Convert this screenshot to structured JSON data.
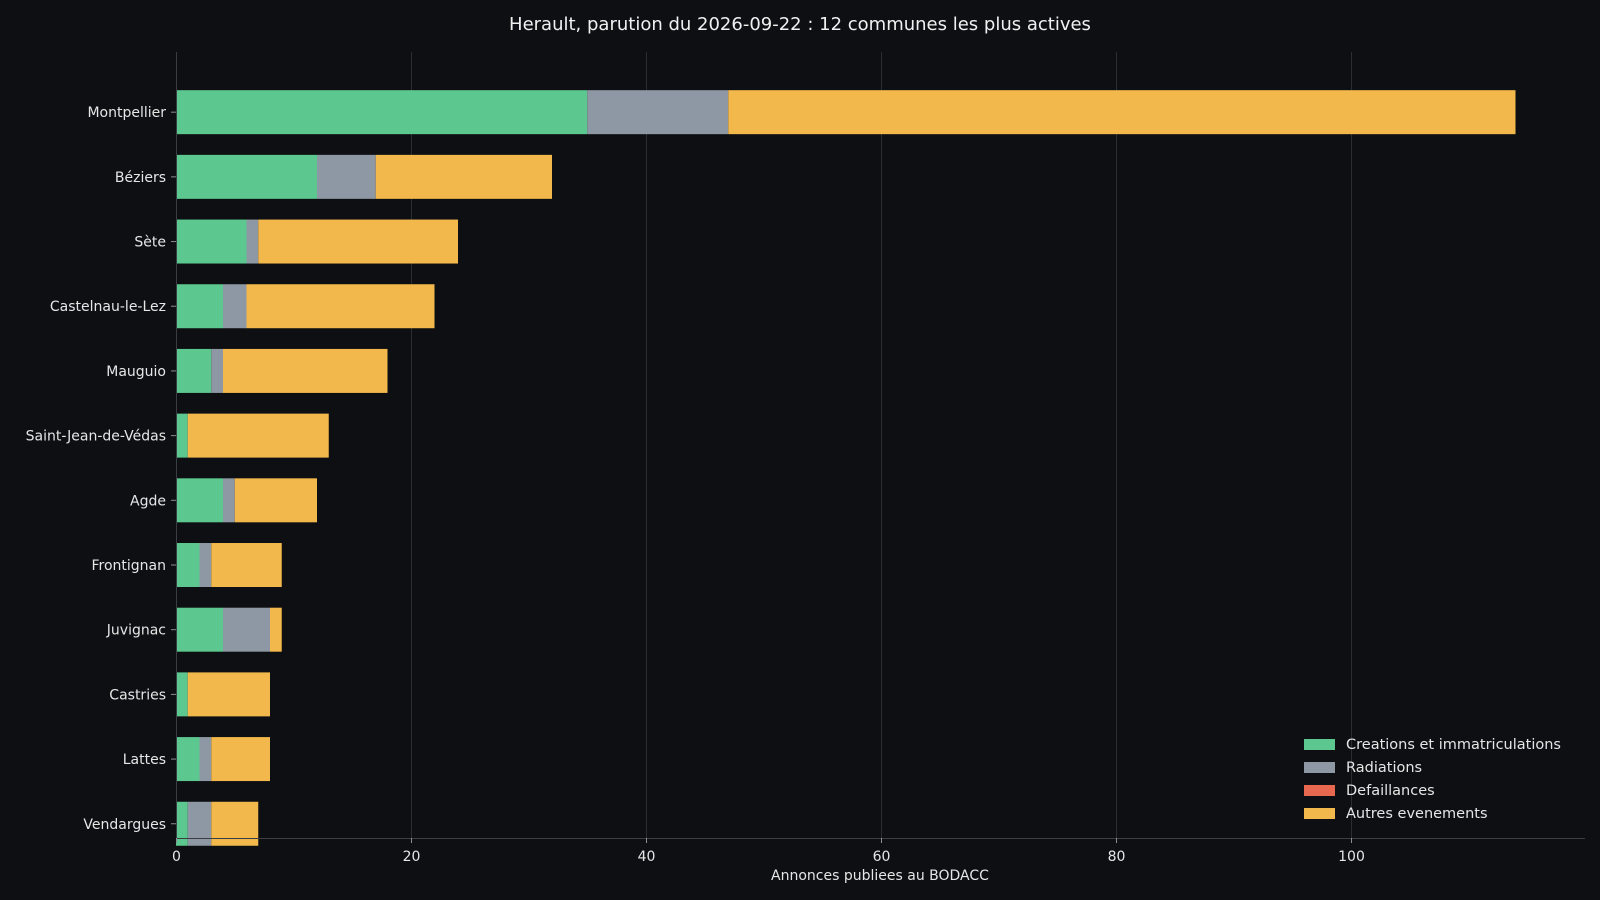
{
  "chart_data": {
    "type": "bar",
    "orientation": "horizontal",
    "stacked": true,
    "title": "Herault, parution du 2026-09-22 : 12 communes les plus actives",
    "xlabel": "Annonces publiees au BODACC",
    "ylabel": "",
    "xlim": [
      0,
      120
    ],
    "xticks": [
      0,
      20,
      40,
      60,
      80,
      100
    ],
    "grid": "vertical",
    "legend_position": "bottom-right",
    "categories": [
      "Montpellier",
      "Béziers",
      "Sète",
      "Castelnau-le-Lez",
      "Mauguio",
      "Saint-Jean-de-Védas",
      "Agde",
      "Frontignan",
      "Juvignac",
      "Castries",
      "Lattes",
      "Vendargues"
    ],
    "series": [
      {
        "name": "Creations et immatriculations",
        "color": "#5cc78e",
        "values": [
          35,
          12,
          6,
          4,
          3,
          1,
          4,
          2,
          4,
          1,
          2,
          1
        ]
      },
      {
        "name": "Radiations",
        "color": "#8e98a4",
        "values": [
          12,
          5,
          1,
          2,
          1,
          0,
          1,
          1,
          4,
          0,
          1,
          2
        ]
      },
      {
        "name": "Defaillances",
        "color": "#e8674f",
        "values": [
          0,
          0,
          0,
          0,
          0,
          0,
          0,
          0,
          0,
          0,
          0,
          0
        ]
      },
      {
        "name": "Autres evenements",
        "color": "#f2b84b",
        "values": [
          67,
          15,
          17,
          16,
          14,
          12,
          7,
          6,
          1,
          7,
          5,
          4
        ]
      }
    ]
  }
}
